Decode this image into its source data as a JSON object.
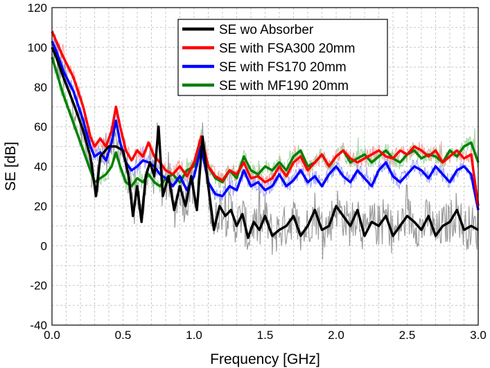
{
  "chart_data": {
    "type": "line",
    "title": "",
    "xlabel": "Frequency [GHz]",
    "ylabel": "SE [dB]",
    "xlim": [
      0.0,
      3.0
    ],
    "ylim": [
      -40,
      120
    ],
    "grid": true,
    "legend_position": "top-right",
    "x_ticks": [
      "0.0",
      "0.5",
      "1.0",
      "1.5",
      "2.0",
      "2.5",
      "3.0"
    ],
    "y_ticks": [
      "-40",
      "-20",
      "0",
      "20",
      "40",
      "60",
      "80",
      "100",
      "120"
    ],
    "series": [
      {
        "name": "SE wo Absorber",
        "color": "#000000",
        "raw_color": "#909090",
        "x": [
          0.0,
          0.03,
          0.08,
          0.15,
          0.22,
          0.27,
          0.31,
          0.34,
          0.4,
          0.45,
          0.5,
          0.54,
          0.57,
          0.6,
          0.63,
          0.66,
          0.69,
          0.72,
          0.75,
          0.78,
          0.82,
          0.86,
          0.9,
          0.94,
          0.98,
          1.02,
          1.06,
          1.1,
          1.14,
          1.18,
          1.22,
          1.26,
          1.3,
          1.34,
          1.38,
          1.42,
          1.46,
          1.5,
          1.55,
          1.6,
          1.65,
          1.7,
          1.75,
          1.8,
          1.85,
          1.9,
          1.95,
          2.0,
          2.05,
          2.1,
          2.15,
          2.2,
          2.25,
          2.3,
          2.35,
          2.4,
          2.45,
          2.5,
          2.55,
          2.6,
          2.65,
          2.7,
          2.75,
          2.8,
          2.85,
          2.9,
          2.95,
          3.0
        ],
        "y": [
          100,
          95,
          85,
          72,
          58,
          45,
          25,
          45,
          50,
          50,
          48,
          35,
          15,
          30,
          12,
          35,
          42,
          35,
          60,
          25,
          35,
          18,
          30,
          20,
          35,
          18,
          55,
          30,
          8,
          20,
          15,
          18,
          10,
          16,
          4,
          12,
          8,
          15,
          5,
          8,
          10,
          15,
          5,
          10,
          18,
          8,
          10,
          20,
          15,
          10,
          18,
          5,
          12,
          10,
          15,
          5,
          10,
          15,
          12,
          8,
          15,
          5,
          10,
          12,
          18,
          8,
          10,
          8
        ]
      },
      {
        "name": "SE with FSA300 20mm",
        "color": "#ff0000",
        "raw_color": "#f4a0a0",
        "x": [
          0.0,
          0.03,
          0.08,
          0.15,
          0.22,
          0.27,
          0.3,
          0.34,
          0.38,
          0.42,
          0.45,
          0.48,
          0.52,
          0.56,
          0.6,
          0.64,
          0.68,
          0.72,
          0.76,
          0.8,
          0.85,
          0.9,
          0.95,
          1.0,
          1.05,
          1.1,
          1.15,
          1.2,
          1.25,
          1.3,
          1.35,
          1.4,
          1.45,
          1.5,
          1.55,
          1.6,
          1.65,
          1.7,
          1.75,
          1.8,
          1.85,
          1.9,
          1.95,
          2.0,
          2.05,
          2.1,
          2.15,
          2.2,
          2.25,
          2.3,
          2.35,
          2.4,
          2.45,
          2.5,
          2.55,
          2.6,
          2.65,
          2.7,
          2.75,
          2.8,
          2.85,
          2.9,
          2.95,
          3.0
        ],
        "y": [
          108,
          103,
          95,
          85,
          70,
          55,
          50,
          54,
          50,
          58,
          70,
          60,
          48,
          43,
          48,
          45,
          52,
          45,
          42,
          38,
          36,
          40,
          35,
          42,
          55,
          40,
          35,
          33,
          38,
          36,
          42,
          34,
          35,
          32,
          34,
          40,
          35,
          42,
          45,
          38,
          42,
          46,
          40,
          45,
          48,
          44,
          42,
          44,
          46,
          48,
          45,
          44,
          48,
          46,
          50,
          48,
          45,
          48,
          42,
          45,
          48,
          44,
          46,
          20
        ]
      },
      {
        "name": "SE with FS170 20mm",
        "color": "#0000ff",
        "raw_color": "#a0a0f4",
        "x": [
          0.0,
          0.03,
          0.08,
          0.15,
          0.22,
          0.27,
          0.3,
          0.34,
          0.38,
          0.42,
          0.45,
          0.48,
          0.52,
          0.56,
          0.6,
          0.64,
          0.68,
          0.72,
          0.76,
          0.8,
          0.85,
          0.9,
          0.95,
          1.0,
          1.05,
          1.1,
          1.15,
          1.2,
          1.25,
          1.3,
          1.35,
          1.4,
          1.45,
          1.5,
          1.55,
          1.6,
          1.65,
          1.7,
          1.75,
          1.8,
          1.85,
          1.9,
          1.95,
          2.0,
          2.05,
          2.1,
          2.15,
          2.2,
          2.25,
          2.3,
          2.35,
          2.4,
          2.45,
          2.5,
          2.55,
          2.6,
          2.65,
          2.7,
          2.75,
          2.8,
          2.85,
          2.9,
          2.95,
          3.0
        ],
        "y": [
          103,
          98,
          88,
          78,
          63,
          50,
          45,
          47,
          43,
          52,
          63,
          52,
          42,
          38,
          40,
          43,
          42,
          40,
          36,
          34,
          30,
          35,
          28,
          35,
          50,
          32,
          26,
          25,
          30,
          28,
          38,
          30,
          32,
          28,
          30,
          36,
          30,
          33,
          38,
          32,
          35,
          30,
          36,
          40,
          35,
          32,
          38,
          34,
          30,
          38,
          42,
          35,
          32,
          36,
          40,
          38,
          34,
          40,
          36,
          32,
          38,
          40,
          36,
          18
        ]
      },
      {
        "name": "SE with MF190 20mm",
        "color": "#008000",
        "raw_color": "#a0d4a0",
        "x": [
          0.0,
          0.03,
          0.08,
          0.15,
          0.22,
          0.27,
          0.3,
          0.34,
          0.38,
          0.42,
          0.45,
          0.48,
          0.52,
          0.56,
          0.6,
          0.64,
          0.68,
          0.72,
          0.76,
          0.8,
          0.85,
          0.9,
          0.95,
          1.0,
          1.05,
          1.1,
          1.15,
          1.2,
          1.25,
          1.3,
          1.35,
          1.4,
          1.45,
          1.5,
          1.55,
          1.6,
          1.65,
          1.7,
          1.75,
          1.8,
          1.85,
          1.9,
          1.95,
          2.0,
          2.05,
          2.1,
          2.15,
          2.2,
          2.25,
          2.3,
          2.35,
          2.4,
          2.45,
          2.5,
          2.55,
          2.6,
          2.65,
          2.7,
          2.75,
          2.8,
          2.85,
          2.9,
          2.95,
          3.0
        ],
        "y": [
          95,
          88,
          76,
          62,
          48,
          38,
          32,
          34,
          36,
          40,
          47,
          40,
          32,
          30,
          34,
          32,
          36,
          32,
          30,
          34,
          36,
          32,
          38,
          40,
          55,
          40,
          34,
          32,
          38,
          34,
          45,
          38,
          36,
          40,
          38,
          42,
          38,
          45,
          48,
          40,
          42,
          46,
          40,
          45,
          48,
          42,
          44,
          46,
          42,
          45,
          48,
          44,
          42,
          46,
          48,
          44,
          46,
          45,
          42,
          48,
          45,
          50,
          52,
          42
        ]
      }
    ]
  }
}
